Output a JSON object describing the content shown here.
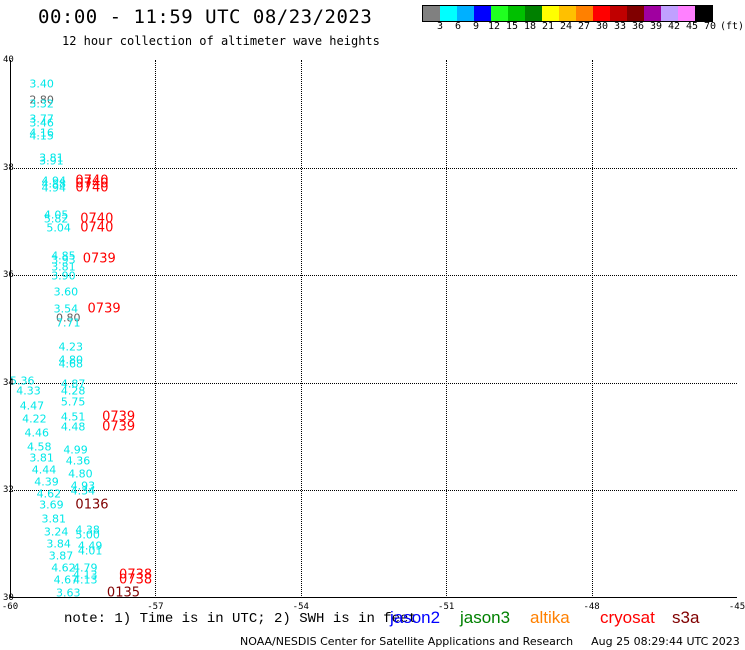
{
  "header": {
    "title": "00:00 - 11:59 UTC 08/23/2023",
    "subtitle": "12 hour collection of altimeter wave heights"
  },
  "colorbar": {
    "colors": [
      "#808080",
      "#00ffff",
      "#00b0ff",
      "#0000ff",
      "#20ff20",
      "#00c000",
      "#008000",
      "#ffff00",
      "#ffc000",
      "#ff8000",
      "#ff0000",
      "#c00000",
      "#800000",
      "#a000a0",
      "#c0a0ff",
      "#ff80ff",
      "#000000"
    ],
    "ticks": [
      "3",
      "6",
      "9",
      "12",
      "15",
      "18",
      "21",
      "24",
      "27",
      "30",
      "33",
      "36",
      "39",
      "42",
      "45",
      "70"
    ],
    "unit": "(ft)"
  },
  "map": {
    "lon_labels": [
      "-60",
      "-57",
      "-54",
      "-51",
      "-48",
      "-45"
    ],
    "lat_labels": [
      "40",
      "38",
      "36",
      "34",
      "32",
      "30"
    ],
    "lon_range": [
      -60,
      -45
    ],
    "lat_range": [
      30,
      40
    ]
  },
  "observations": [
    {
      "t": "3.40",
      "lon": -59.6,
      "lat": 39.55,
      "c": "#00e8e8"
    },
    {
      "t": "2.80",
      "lon": -59.6,
      "lat": 39.25,
      "c": "#606060"
    },
    {
      "t": "3.32",
      "lon": -59.6,
      "lat": 39.18,
      "c": "#00e8e8"
    },
    {
      "t": "3.77",
      "lon": -59.6,
      "lat": 38.9,
      "c": "#00e8e8"
    },
    {
      "t": "3.46",
      "lon": -59.6,
      "lat": 38.83,
      "c": "#00e8e8"
    },
    {
      "t": "4.16",
      "lon": -59.6,
      "lat": 38.65,
      "c": "#00e8e8"
    },
    {
      "t": "4.15",
      "lon": -59.6,
      "lat": 38.58,
      "c": "#00e8e8"
    },
    {
      "t": "3.81",
      "lon": -59.4,
      "lat": 38.17,
      "c": "#00e8e8"
    },
    {
      "t": "3.91",
      "lon": -59.4,
      "lat": 38.12,
      "c": "#00e8e8"
    },
    {
      "t": "4.94",
      "lon": -59.35,
      "lat": 37.76,
      "c": "#00e8e8"
    },
    {
      "t": "4.88",
      "lon": -59.35,
      "lat": 37.69,
      "c": "#00e8e8"
    },
    {
      "t": "4.94",
      "lon": -59.35,
      "lat": 37.62,
      "c": "#00e8e8"
    },
    {
      "t": "0740",
      "lon": -58.65,
      "lat": 37.76,
      "c": "#ff0000",
      "time": true
    },
    {
      "t": "0740",
      "lon": -58.65,
      "lat": 37.69,
      "c": "#ff0000",
      "time": true
    },
    {
      "t": "0740",
      "lon": -58.65,
      "lat": 37.62,
      "c": "#ff0000",
      "time": true
    },
    {
      "t": "4.05",
      "lon": -59.3,
      "lat": 37.12,
      "c": "#00e8e8"
    },
    {
      "t": "5.82",
      "lon": -59.3,
      "lat": 37.04,
      "c": "#00e8e8"
    },
    {
      "t": "5.04",
      "lon": -59.25,
      "lat": 36.88,
      "c": "#00e8e8"
    },
    {
      "t": "0740",
      "lon": -58.55,
      "lat": 37.04,
      "c": "#ff0000",
      "time": true
    },
    {
      "t": "0740",
      "lon": -58.55,
      "lat": 36.88,
      "c": "#ff0000",
      "time": true
    },
    {
      "t": "4.85",
      "lon": -59.15,
      "lat": 36.35,
      "c": "#00e8e8"
    },
    {
      "t": "3.93",
      "lon": -59.15,
      "lat": 36.28,
      "c": "#00e8e8"
    },
    {
      "t": "3.81",
      "lon": -59.15,
      "lat": 36.15,
      "c": "#00e8e8"
    },
    {
      "t": "3.90",
      "lon": -59.15,
      "lat": 35.98,
      "c": "#00e8e8"
    },
    {
      "t": "0739",
      "lon": -58.5,
      "lat": 36.3,
      "c": "#ff0000",
      "time": true
    },
    {
      "t": "3.60",
      "lon": -59.1,
      "lat": 35.68,
      "c": "#00e8e8"
    },
    {
      "t": "3.54",
      "lon": -59.1,
      "lat": 35.38,
      "c": "#00e8e8"
    },
    {
      "t": "0.80",
      "lon": -59.05,
      "lat": 35.2,
      "c": "#606060"
    },
    {
      "t": "7.71",
      "lon": -59.05,
      "lat": 35.12,
      "c": "#00e8e8"
    },
    {
      "t": "0739",
      "lon": -58.4,
      "lat": 35.38,
      "c": "#ff0000",
      "time": true
    },
    {
      "t": "4.23",
      "lon": -59.0,
      "lat": 34.67,
      "c": "#00e8e8"
    },
    {
      "t": "4.80",
      "lon": -59.0,
      "lat": 34.42,
      "c": "#00e8e8"
    },
    {
      "t": "4.68",
      "lon": -59.0,
      "lat": 34.35,
      "c": "#00e8e8"
    },
    {
      "t": "5.36",
      "lon": -60.0,
      "lat": 34.04,
      "c": "#00e8e8"
    },
    {
      "t": "4.33",
      "lon": -59.87,
      "lat": 33.84,
      "c": "#00e8e8"
    },
    {
      "t": "4.47",
      "lon": -59.8,
      "lat": 33.57,
      "c": "#00e8e8"
    },
    {
      "t": "4.22",
      "lon": -59.75,
      "lat": 33.32,
      "c": "#00e8e8"
    },
    {
      "t": "4.46",
      "lon": -59.7,
      "lat": 33.06,
      "c": "#00e8e8"
    },
    {
      "t": "4.58",
      "lon": -59.65,
      "lat": 32.8,
      "c": "#00e8e8"
    },
    {
      "t": "3.81",
      "lon": -59.6,
      "lat": 32.6,
      "c": "#00e8e8"
    },
    {
      "t": "4.44",
      "lon": -59.55,
      "lat": 32.38,
      "c": "#00e8e8"
    },
    {
      "t": "4.39",
      "lon": -59.5,
      "lat": 32.15,
      "c": "#00e8e8"
    },
    {
      "t": "4.62",
      "lon": -59.45,
      "lat": 31.93,
      "c": "#00e8e8"
    },
    {
      "t": "3.69",
      "lon": -59.4,
      "lat": 31.72,
      "c": "#00e8e8"
    },
    {
      "t": "3.81",
      "lon": -59.35,
      "lat": 31.47,
      "c": "#00e8e8"
    },
    {
      "t": "3.24",
      "lon": -59.3,
      "lat": 31.23,
      "c": "#00e8e8"
    },
    {
      "t": "3.84",
      "lon": -59.25,
      "lat": 31.0,
      "c": "#00e8e8"
    },
    {
      "t": "3.87",
      "lon": -59.2,
      "lat": 30.78,
      "c": "#00e8e8"
    },
    {
      "t": "4.62",
      "lon": -59.15,
      "lat": 30.55,
      "c": "#00e8e8"
    },
    {
      "t": "4.67",
      "lon": -59.1,
      "lat": 30.33,
      "c": "#00e8e8"
    },
    {
      "t": "3.63",
      "lon": -59.05,
      "lat": 30.1,
      "c": "#00e8e8"
    },
    {
      "t": "4.87",
      "lon": -58.95,
      "lat": 33.97,
      "c": "#00e8e8"
    },
    {
      "t": "4.28",
      "lon": -58.95,
      "lat": 33.85,
      "c": "#00e8e8"
    },
    {
      "t": "5.75",
      "lon": -58.95,
      "lat": 33.65,
      "c": "#00e8e8"
    },
    {
      "t": "4.51",
      "lon": -58.95,
      "lat": 33.37,
      "c": "#00e8e8"
    },
    {
      "t": "4.48",
      "lon": -58.95,
      "lat": 33.18,
      "c": "#00e8e8"
    },
    {
      "t": "0739",
      "lon": -58.1,
      "lat": 33.37,
      "c": "#ff0000",
      "time": true
    },
    {
      "t": "0739",
      "lon": -58.1,
      "lat": 33.18,
      "c": "#ff0000",
      "time": true
    },
    {
      "t": "4.99",
      "lon": -58.9,
      "lat": 32.75,
      "c": "#00e8e8"
    },
    {
      "t": "4.36",
      "lon": -58.85,
      "lat": 32.54,
      "c": "#00e8e8"
    },
    {
      "t": "4.80",
      "lon": -58.8,
      "lat": 32.3,
      "c": "#00e8e8"
    },
    {
      "t": "4.93",
      "lon": -58.75,
      "lat": 32.08,
      "c": "#00e8e8"
    },
    {
      "t": "4.34",
      "lon": -58.75,
      "lat": 31.98,
      "c": "#00e8e8"
    },
    {
      "t": "0136",
      "lon": -58.65,
      "lat": 31.72,
      "c": "#800000",
      "time": true
    },
    {
      "t": "4.38",
      "lon": -58.65,
      "lat": 31.27,
      "c": "#00e8e8"
    },
    {
      "t": "5.00",
      "lon": -58.65,
      "lat": 31.18,
      "c": "#00e8e8"
    },
    {
      "t": "4.49",
      "lon": -58.6,
      "lat": 30.97,
      "c": "#00e8e8"
    },
    {
      "t": "4.01",
      "lon": -58.6,
      "lat": 30.88,
      "c": "#00e8e8"
    },
    {
      "t": "4.79",
      "lon": -58.7,
      "lat": 30.55,
      "c": "#00e8e8"
    },
    {
      "t": "4.13",
      "lon": -58.7,
      "lat": 30.42,
      "c": "#00e8e8"
    },
    {
      "t": "4.13",
      "lon": -58.7,
      "lat": 30.33,
      "c": "#00e8e8"
    },
    {
      "t": "0738",
      "lon": -57.75,
      "lat": 30.42,
      "c": "#ff0000",
      "time": true
    },
    {
      "t": "0738",
      "lon": -57.75,
      "lat": 30.33,
      "c": "#ff0000",
      "time": true
    },
    {
      "t": "0135",
      "lon": -58.0,
      "lat": 30.1,
      "c": "#800000",
      "time": true
    }
  ],
  "note": "note: 1) Time is in UTC; 2) SWH is in feet",
  "legend": [
    {
      "label": "jason2",
      "color": "#0000ff"
    },
    {
      "label": "jason3",
      "color": "#008000"
    },
    {
      "label": "altika",
      "color": "#ff8000"
    },
    {
      "label": "cryosat",
      "color": "#ff0000"
    },
    {
      "label": "s3a",
      "color": "#800000"
    }
  ],
  "footer": {
    "credit": "NOAA/NESDIS Center for Satellite Applications and Research",
    "timestamp": "Aug 25 08:29:44 UTC 2023"
  }
}
